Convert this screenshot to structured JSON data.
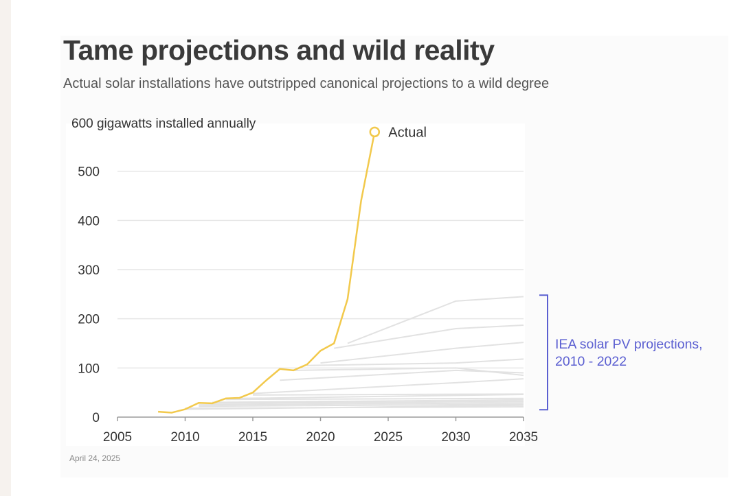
{
  "header": {
    "title": "Tame projections and wild reality",
    "subtitle": "Actual solar installations have outstripped canonical projections to a wild degree"
  },
  "footer": {
    "date": "April 24, 2025"
  },
  "colors": {
    "actual": "#f2c94c",
    "projection": "#e2e2e2",
    "annotation": "#5b5fd1",
    "grid": "#e6e6e6"
  },
  "chart_data": {
    "type": "line",
    "title": "Tame projections and wild reality",
    "subtitle": "Actual solar installations have outstripped canonical projections to a wild degree",
    "ylabel": "600 gigawatts installed annually",
    "xlabel": "",
    "xlim": [
      2005,
      2035
    ],
    "ylim": [
      0,
      600
    ],
    "x_ticks": [
      "2005",
      "2010",
      "2015",
      "2020",
      "2025",
      "2030",
      "2035"
    ],
    "y_ticks": [
      "0",
      "100",
      "200",
      "300",
      "400",
      "500"
    ],
    "grid": true,
    "series": [
      {
        "name": "Actual",
        "x": [
          2008,
          2009,
          2010,
          2011,
          2012,
          2013,
          2014,
          2015,
          2016,
          2017,
          2018,
          2019,
          2020,
          2021,
          2022,
          2023,
          2024
        ],
        "y": [
          11,
          9,
          16,
          29,
          28,
          38,
          39,
          50,
          75,
          98,
          95,
          107,
          135,
          150,
          240,
          440,
          580
        ]
      }
    ],
    "projections": [
      {
        "x": [
          2010,
          2035
        ],
        "y": [
          18,
          21
        ]
      },
      {
        "x": [
          2010,
          2035
        ],
        "y": [
          16,
          24
        ]
      },
      {
        "x": [
          2011,
          2035
        ],
        "y": [
          22,
          26
        ]
      },
      {
        "x": [
          2011,
          2035
        ],
        "y": [
          25,
          29
        ]
      },
      {
        "x": [
          2012,
          2035
        ],
        "y": [
          28,
          32
        ]
      },
      {
        "x": [
          2012,
          2035
        ],
        "y": [
          30,
          35
        ]
      },
      {
        "x": [
          2013,
          2035
        ],
        "y": [
          36,
          38
        ]
      },
      {
        "x": [
          2014,
          2035
        ],
        "y": [
          38,
          46
        ]
      },
      {
        "x": [
          2015,
          2035
        ],
        "y": [
          45,
          47
        ]
      },
      {
        "x": [
          2015,
          2030,
          2035
        ],
        "y": [
          48,
          70,
          78
        ]
      },
      {
        "x": [
          2017,
          2030,
          2035
        ],
        "y": [
          75,
          95,
          90
        ]
      },
      {
        "x": [
          2018,
          2030,
          2035
        ],
        "y": [
          95,
          100,
          85
        ]
      },
      {
        "x": [
          2019,
          2030,
          2035
        ],
        "y": [
          105,
          110,
          118
        ]
      },
      {
        "x": [
          2020,
          2030,
          2035
        ],
        "y": [
          110,
          140,
          152
        ]
      },
      {
        "x": [
          2021,
          2030,
          2035
        ],
        "y": [
          140,
          180,
          187
        ]
      },
      {
        "x": [
          2022,
          2030,
          2035
        ],
        "y": [
          150,
          236,
          245
        ]
      }
    ],
    "annotations": [
      {
        "text": "Actual",
        "x": 2024,
        "y": 580
      },
      {
        "text_lines": [
          "IEA solar PV projections,",
          "2010 - 2022"
        ],
        "y_range": [
          15,
          248
        ]
      }
    ]
  }
}
